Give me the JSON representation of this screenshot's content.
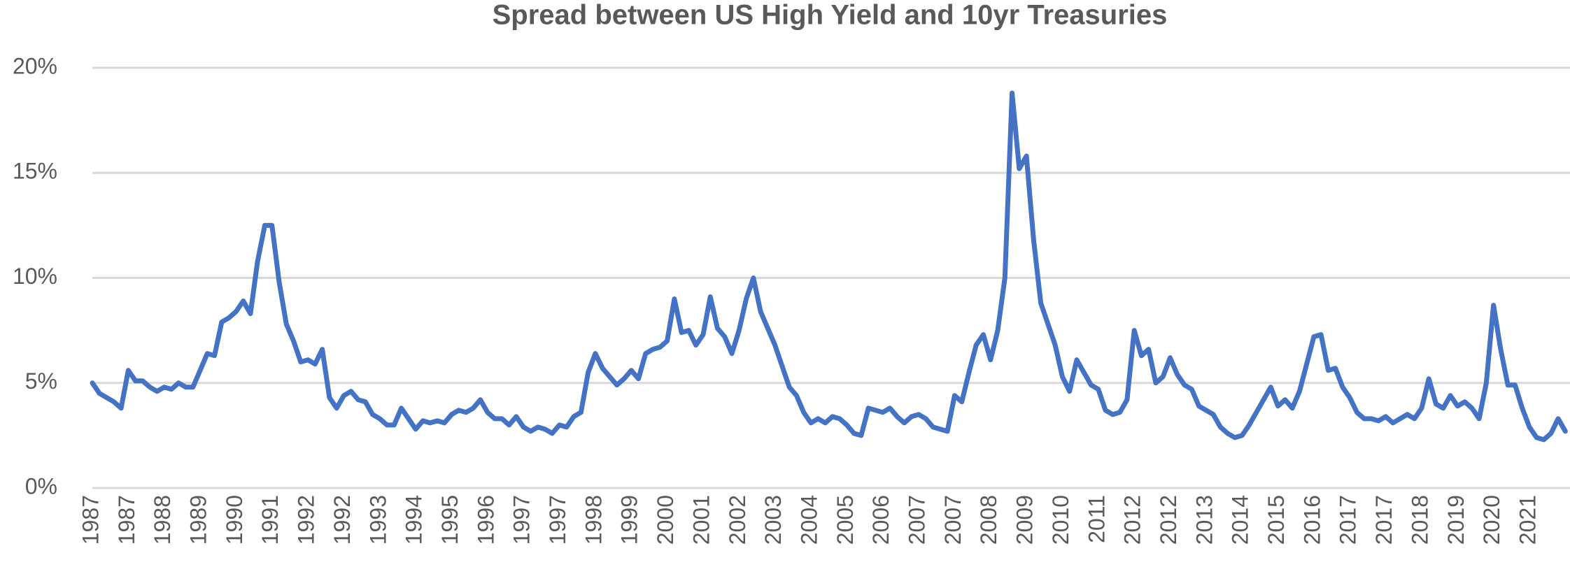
{
  "chart_data": {
    "type": "line",
    "title": "Spread between US High Yield and 10yr Treasuries",
    "categories": [
      "1987",
      null,
      null,
      null,
      null,
      "1987",
      null,
      null,
      null,
      null,
      "1988",
      null,
      null,
      null,
      null,
      "1989",
      null,
      null,
      null,
      null,
      "1990",
      null,
      null,
      null,
      null,
      "1991",
      null,
      null,
      null,
      null,
      "1992",
      null,
      null,
      null,
      null,
      "1992",
      null,
      null,
      null,
      null,
      "1993",
      null,
      null,
      null,
      null,
      "1994",
      null,
      null,
      null,
      null,
      "1995",
      null,
      null,
      null,
      null,
      "1996",
      null,
      null,
      null,
      null,
      "1997",
      null,
      null,
      null,
      null,
      "1997",
      null,
      null,
      null,
      null,
      "1998",
      null,
      null,
      null,
      null,
      "1999",
      null,
      null,
      null,
      null,
      "2000",
      null,
      null,
      null,
      null,
      "2001",
      null,
      null,
      null,
      null,
      "2002",
      null,
      null,
      null,
      null,
      "2003",
      null,
      null,
      null,
      null,
      "2004",
      null,
      null,
      null,
      null,
      "2005",
      null,
      null,
      null,
      null,
      "2006",
      null,
      null,
      null,
      null,
      "2007",
      null,
      null,
      null,
      null,
      "2007",
      null,
      null,
      null,
      null,
      "2008",
      null,
      null,
      null,
      null,
      "2009",
      null,
      null,
      null,
      null,
      "2010",
      null,
      null,
      null,
      null,
      "2011",
      null,
      null,
      null,
      null,
      "2012",
      null,
      null,
      null,
      null,
      "2012",
      null,
      null,
      null,
      null,
      "2013",
      null,
      null,
      null,
      null,
      "2014",
      null,
      null,
      null,
      null,
      "2015",
      null,
      null,
      null,
      null,
      "2016",
      null,
      null,
      null,
      null,
      "2017",
      null,
      null,
      null,
      null,
      "2017",
      null,
      null,
      null,
      null,
      "2018",
      null,
      null,
      null,
      null,
      "2019",
      null,
      null,
      null,
      null,
      "2020",
      null,
      null,
      null,
      null,
      "2021",
      null,
      null,
      null,
      null,
      null
    ],
    "values": [
      5.0,
      4.5,
      4.3,
      4.1,
      3.8,
      5.6,
      5.1,
      5.1,
      4.8,
      4.6,
      4.8,
      4.7,
      5.0,
      4.8,
      4.8,
      5.6,
      6.4,
      6.3,
      7.9,
      8.1,
      8.4,
      8.9,
      8.3,
      10.8,
      12.5,
      12.5,
      9.8,
      7.8,
      7.0,
      6.0,
      6.1,
      5.9,
      6.6,
      4.3,
      3.8,
      4.4,
      4.6,
      4.2,
      4.1,
      3.5,
      3.3,
      3.0,
      3.0,
      3.8,
      3.3,
      2.8,
      3.2,
      3.1,
      3.2,
      3.1,
      3.5,
      3.7,
      3.6,
      3.8,
      4.2,
      3.6,
      3.3,
      3.3,
      3.0,
      3.4,
      2.9,
      2.7,
      2.9,
      2.8,
      2.6,
      3.0,
      2.9,
      3.4,
      3.6,
      5.5,
      6.4,
      5.7,
      5.3,
      4.9,
      5.2,
      5.6,
      5.2,
      6.4,
      6.6,
      6.7,
      7.0,
      9.0,
      7.4,
      7.5,
      6.8,
      7.3,
      9.1,
      7.6,
      7.2,
      6.4,
      7.5,
      9.0,
      10.0,
      8.4,
      7.6,
      6.8,
      5.8,
      4.8,
      4.4,
      3.6,
      3.1,
      3.3,
      3.1,
      3.4,
      3.3,
      3.0,
      2.6,
      2.5,
      3.8,
      3.7,
      3.6,
      3.8,
      3.4,
      3.1,
      3.4,
      3.5,
      3.3,
      2.9,
      2.8,
      2.7,
      4.4,
      4.1,
      5.5,
      6.8,
      7.3,
      6.1,
      7.5,
      10.0,
      18.8,
      15.2,
      15.8,
      11.8,
      8.8,
      7.8,
      6.8,
      5.3,
      4.6,
      6.1,
      5.5,
      4.9,
      4.7,
      3.7,
      3.5,
      3.6,
      4.2,
      7.5,
      6.3,
      6.6,
      5.0,
      5.3,
      6.2,
      5.4,
      4.9,
      4.7,
      3.9,
      3.7,
      3.5,
      2.9,
      2.6,
      2.4,
      2.5,
      3.0,
      3.6,
      4.2,
      4.8,
      3.9,
      4.2,
      3.8,
      4.6,
      5.9,
      7.2,
      7.3,
      5.6,
      5.7,
      4.8,
      4.3,
      3.6,
      3.3,
      3.3,
      3.2,
      3.4,
      3.1,
      3.3,
      3.5,
      3.3,
      3.8,
      5.2,
      4.0,
      3.8,
      4.4,
      3.9,
      4.1,
      3.8,
      3.3,
      5.0,
      8.7,
      6.6,
      4.9,
      4.9,
      3.8,
      2.9,
      2.4,
      2.3,
      2.6,
      3.3,
      2.7
    ],
    "color": "#4472c4",
    "ylim": [
      0,
      20
    ],
    "yticks": [
      {
        "value": 0,
        "label": "0%"
      },
      {
        "value": 5,
        "label": "5%"
      },
      {
        "value": 10,
        "label": "10%"
      },
      {
        "value": 15,
        "label": "15%"
      },
      {
        "value": 20,
        "label": "20%"
      }
    ],
    "grid": true
  }
}
